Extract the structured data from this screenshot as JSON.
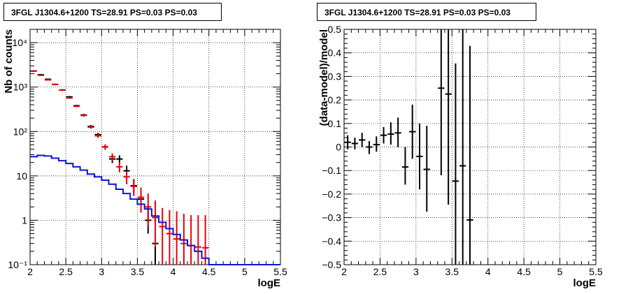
{
  "colors": {
    "data": "#000000",
    "model": "#e8000b",
    "background": "#0a14d6"
  },
  "chart_data": [
    {
      "type": "line",
      "title": "3FGL J1304.6+1200 TS=28.91 PS=0.03 PS=0.03",
      "xlabel": "logE",
      "ylabel": "Nb of counts",
      "xlim": [
        2.0,
        5.5
      ],
      "ylim": [
        0.1,
        20000
      ],
      "yscale": "log",
      "grid": true,
      "xticks": [
        "2",
        "2.5",
        "3",
        "3.5",
        "4",
        "4.5",
        "5",
        "5.5"
      ],
      "yticks": [
        "10⁻¹",
        "1",
        "10",
        "10²",
        "10³",
        "10⁴"
      ],
      "bin_width": 0.1,
      "series": [
        {
          "style": "error-points",
          "color": "#000000",
          "x": [
            2.05,
            2.15,
            2.25,
            2.35,
            2.45,
            2.55,
            2.65,
            2.75,
            2.85,
            2.95,
            3.05,
            3.15,
            3.25,
            3.35,
            3.45,
            3.55,
            3.65,
            3.75
          ],
          "y": [
            2300,
            1900,
            1500,
            1150,
            860,
            600,
            380,
            235,
            130,
            85,
            45,
            24,
            24,
            13,
            6,
            3,
            1,
            0.3
          ],
          "ylo": [
            2200,
            1820,
            1440,
            1100,
            820,
            570,
            360,
            220,
            120,
            77,
            39,
            19.5,
            19.5,
            10,
            4,
            1.5,
            0.5,
            0.1
          ],
          "yhi": [
            2400,
            1980,
            1560,
            1200,
            900,
            630,
            400,
            250,
            140,
            93,
            51,
            29,
            29,
            17,
            8.5,
            4.5,
            2.2,
            0.8
          ]
        },
        {
          "style": "error-points",
          "color": "#e8000b",
          "x": [
            2.05,
            2.15,
            2.25,
            2.35,
            2.45,
            2.55,
            2.65,
            2.75,
            2.85,
            2.95,
            3.05,
            3.15,
            3.25,
            3.35,
            3.45,
            3.55,
            3.65,
            3.75,
            3.85,
            3.95,
            4.05,
            4.15,
            4.25,
            4.35,
            4.45
          ],
          "y": [
            2300,
            1850,
            1450,
            1150,
            860,
            570,
            370,
            230,
            125,
            80,
            45,
            27,
            16,
            9.5,
            5.8,
            3.3,
            2.0,
            1.15,
            0.72,
            0.5,
            0.38,
            0.3,
            0.27,
            0.25,
            0.24
          ],
          "ylo": [
            2220,
            1780,
            1400,
            1110,
            830,
            545,
            350,
            215,
            115,
            72,
            39,
            22,
            12,
            6.5,
            3.5,
            1.5,
            0.7,
            0.25,
            0.1,
            0.1,
            0.1,
            0.1,
            0.1,
            0.1,
            0.1
          ],
          "yhi": [
            2380,
            1920,
            1500,
            1190,
            890,
            595,
            390,
            245,
            135,
            88,
            51,
            32,
            20,
            12.5,
            8.3,
            5.5,
            4.0,
            2.8,
            1.9,
            1.7,
            1.6,
            1.4,
            1.3,
            1.3,
            1.3
          ]
        },
        {
          "style": "step",
          "color": "#0a14d6",
          "edges": [
            2.0,
            2.1,
            2.2,
            2.3,
            2.4,
            2.5,
            2.6,
            2.7,
            2.8,
            2.9,
            3.0,
            3.1,
            3.2,
            3.3,
            3.4,
            3.5,
            3.6,
            3.7,
            3.8,
            3.9,
            4.0,
            4.1,
            4.2,
            4.3,
            4.4,
            4.5,
            5.5
          ],
          "values": [
            27,
            29,
            28,
            25,
            22,
            19,
            16,
            13.5,
            11,
            9.5,
            8,
            6.5,
            5,
            4,
            3,
            2.3,
            1.8,
            1.25,
            0.9,
            0.65,
            0.48,
            0.36,
            0.27,
            0.2,
            0.14,
            0.1
          ]
        }
      ]
    },
    {
      "type": "scatter",
      "title": "3FGL J1304.6+1200 TS=28.91 PS=0.03 PS=0.03",
      "xlabel": "logE",
      "ylabel": "(data-model)/model",
      "xlim": [
        2.0,
        5.5
      ],
      "ylim": [
        -0.5,
        0.5
      ],
      "grid": true,
      "xticks": [
        "2",
        "2.5",
        "3",
        "3.5",
        "4",
        "4.5",
        "5",
        "5.5"
      ],
      "yticks": [
        "−0.5",
        "−0.4",
        "−0.3",
        "−0.2",
        "−0.1",
        "0",
        "0.1",
        "0.2",
        "0.3",
        "0.4",
        "0.5"
      ],
      "bin_width": 0.1,
      "series": [
        {
          "style": "error-points",
          "color": "#000000",
          "x": [
            2.05,
            2.15,
            2.25,
            2.35,
            2.45,
            2.55,
            2.65,
            2.75,
            2.85,
            2.95,
            3.05,
            3.15,
            3.35,
            3.45,
            3.55,
            3.65,
            3.75
          ],
          "y": [
            0.02,
            0.015,
            0.03,
            0.0,
            0.01,
            0.05,
            0.055,
            0.06,
            -0.085,
            0.065,
            -0.04,
            -0.095,
            0.25,
            0.225,
            -0.145,
            -0.08,
            -0.31
          ],
          "ylo": [
            -0.01,
            -0.01,
            0.0,
            -0.03,
            -0.02,
            0.015,
            0.01,
            0.0,
            -0.16,
            -0.05,
            -0.18,
            -0.275,
            -0.12,
            -0.245,
            -0.5,
            -0.5,
            -0.5
          ],
          "yhi": [
            0.05,
            0.04,
            0.06,
            0.025,
            0.045,
            0.085,
            0.105,
            0.125,
            0.0,
            0.18,
            0.1,
            0.09,
            0.5,
            0.5,
            0.355,
            0.5,
            0.43
          ]
        }
      ]
    }
  ]
}
